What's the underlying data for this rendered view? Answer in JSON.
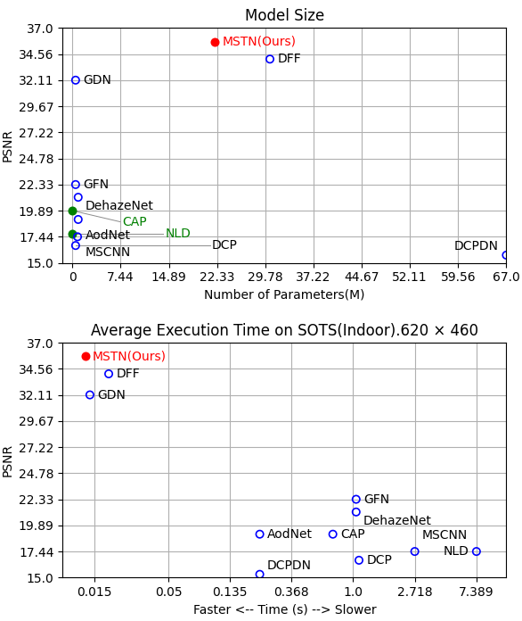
{
  "chart_data": [
    {
      "type": "scatter",
      "title": "Model Size",
      "x_label": "Number of Parameters(M)",
      "y_label": "PSNR",
      "xlim": [
        -1.5,
        67.0
      ],
      "ylim": [
        15.0,
        37.0
      ],
      "xticks": [
        0,
        7.44,
        14.89,
        22.33,
        29.78,
        37.22,
        44.67,
        52.11,
        59.56,
        {
          "value": 67.0,
          "label": "67.0"
        }
      ],
      "yticks": [
        {
          "value": 15.0,
          "label": "15.0"
        },
        17.44,
        19.89,
        22.33,
        24.78,
        27.22,
        29.67,
        32.11,
        34.56,
        {
          "value": 37.0,
          "label": "37.0"
        }
      ],
      "grid": true,
      "point_labels": [
        "MSTN(Ours)",
        "DFF",
        "GDN",
        "GFN",
        "DehazeNet",
        "CAP",
        "AodNet",
        "NLD",
        "MSCNN",
        "DCP",
        "DCPDN"
      ],
      "x": [
        22.0,
        30.5,
        0.5,
        0.5,
        0.9,
        0.0,
        0.9,
        0.0,
        0.8,
        0.5,
        67.0
      ],
      "values": [
        35.72,
        34.08,
        32.11,
        22.33,
        21.14,
        19.89,
        19.06,
        17.76,
        17.44,
        16.62,
        15.72
      ],
      "colors": [
        "red",
        "blue",
        "blue",
        "blue",
        "blue",
        "green",
        "blue",
        "green",
        "blue",
        "blue",
        "blue"
      ]
    },
    {
      "type": "scatter",
      "title": "Average Execution Time on SOTS(Indoor).620 × 460",
      "x_label": "Faster <-- Time (s) --> Slower",
      "y_label": "PSNR",
      "log": "x",
      "xlim": [
        0.009,
        12.0
      ],
      "ylim": [
        15.0,
        37.0
      ],
      "xticks": [
        0.015,
        0.05,
        0.135,
        0.368,
        {
          "value": 1.0,
          "label": "1.0"
        },
        2.718,
        7.389
      ],
      "yticks": [
        {
          "value": 15.0,
          "label": "15.0"
        },
        17.44,
        19.89,
        22.33,
        24.78,
        27.22,
        29.67,
        32.11,
        34.56,
        {
          "value": 37.0,
          "label": "37.0"
        }
      ],
      "grid": true,
      "point_labels": [
        "MSTN(Ours)",
        "DFF",
        "GDN",
        "GFN",
        "DehazeNet",
        "CAP",
        "AodNet",
        "NLD",
        "MSCNN",
        "DCP",
        "DCPDN"
      ],
      "x": [
        0.013,
        0.019,
        0.014,
        1.05,
        1.05,
        0.72,
        0.22,
        7.389,
        2.718,
        1.1,
        0.22
      ],
      "values": [
        35.72,
        34.08,
        32.11,
        22.33,
        21.14,
        19.06,
        19.06,
        17.44,
        17.44,
        16.62,
        15.3
      ],
      "colors": [
        "red",
        "blue",
        "blue",
        "blue",
        "blue",
        "blue",
        "blue",
        "blue",
        "blue",
        "blue",
        "blue"
      ]
    }
  ]
}
